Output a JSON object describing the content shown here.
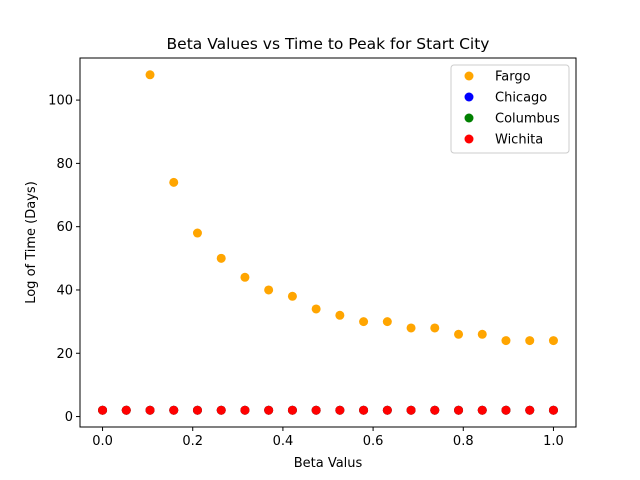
{
  "chart_data": {
    "type": "scatter",
    "title": "Beta Values vs Time to Peak for Start City",
    "xlabel": "Beta Valus",
    "ylabel": "Log of Time (Days)",
    "xlim": [
      -0.05,
      1.05
    ],
    "ylim": [
      -3.3,
      113.3
    ],
    "xticks": [
      0.0,
      0.2,
      0.4,
      0.6,
      0.8,
      1.0
    ],
    "xtick_labels": [
      "0.0",
      "0.2",
      "0.4",
      "0.6",
      "0.8",
      "1.0"
    ],
    "yticks": [
      0,
      20,
      40,
      60,
      80,
      100
    ],
    "ytick_labels": [
      "0",
      "20",
      "40",
      "60",
      "80",
      "100"
    ],
    "grid": false,
    "legend_position": "upper right",
    "series": [
      {
        "name": "Fargo",
        "color": "#ffa500",
        "x": [
          0.0,
          0.0526,
          0.1053,
          0.1579,
          0.2105,
          0.2632,
          0.3158,
          0.3684,
          0.4211,
          0.4737,
          0.5263,
          0.5789,
          0.6316,
          0.6842,
          0.7368,
          0.7895,
          0.8421,
          0.8947,
          0.9474,
          1.0
        ],
        "y": [
          2,
          2,
          108,
          74,
          58,
          50,
          44,
          40,
          38,
          34,
          32,
          30,
          30,
          28,
          28,
          26,
          26,
          24,
          24,
          24
        ]
      },
      {
        "name": "Chicago",
        "color": "#0000ff",
        "x": [
          0.0,
          0.0526,
          0.1053,
          0.1579,
          0.2105,
          0.2632,
          0.3158,
          0.3684,
          0.4211,
          0.4737,
          0.5263,
          0.5789,
          0.6316,
          0.6842,
          0.7368,
          0.7895,
          0.8421,
          0.8947,
          0.9474,
          1.0
        ],
        "y": [
          2,
          2,
          2,
          2,
          2,
          2,
          2,
          2,
          2,
          2,
          2,
          2,
          2,
          2,
          2,
          2,
          2,
          2,
          2,
          2
        ]
      },
      {
        "name": "Columbus",
        "color": "#008000",
        "x": [
          0.0,
          0.0526,
          0.1053,
          0.1579,
          0.2105,
          0.2632,
          0.3158,
          0.3684,
          0.4211,
          0.4737,
          0.5263,
          0.5789,
          0.6316,
          0.6842,
          0.7368,
          0.7895,
          0.8421,
          0.8947,
          0.9474,
          1.0
        ],
        "y": [
          2,
          2,
          2,
          2,
          2,
          2,
          2,
          2,
          2,
          2,
          2,
          2,
          2,
          2,
          2,
          2,
          2,
          2,
          2,
          2
        ]
      },
      {
        "name": "Wichita",
        "color": "#ff0000",
        "x": [
          0.0,
          0.0526,
          0.1053,
          0.1579,
          0.2105,
          0.2632,
          0.3158,
          0.3684,
          0.4211,
          0.4737,
          0.5263,
          0.5789,
          0.6316,
          0.6842,
          0.7368,
          0.7895,
          0.8421,
          0.8947,
          0.9474,
          1.0
        ],
        "y": [
          2,
          2,
          2,
          2,
          2,
          2,
          2,
          2,
          2,
          2,
          2,
          2,
          2,
          2,
          2,
          2,
          2,
          2,
          2,
          2
        ]
      }
    ]
  }
}
